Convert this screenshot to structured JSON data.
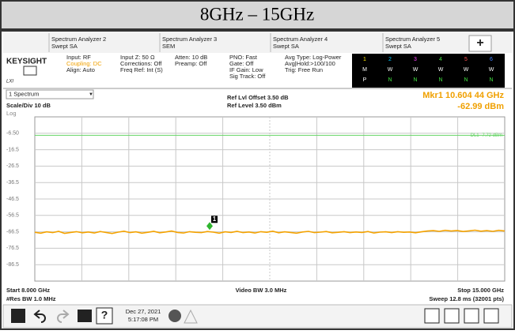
{
  "title": "8GHz – 15GHz",
  "tabs": [
    {
      "name": "Spectrum Analyzer 2",
      "mode": "Swept SA"
    },
    {
      "name": "Spectrum Analyzer 3",
      "mode": "SEM"
    },
    {
      "name": "Spectrum Analyzer 4",
      "mode": "Swept SA"
    },
    {
      "name": "Spectrum Analyzer 5",
      "mode": "Swept SA"
    }
  ],
  "add_tab": "+",
  "brand": "KEYSIGHT",
  "brand_sub": "LXI",
  "settings": [
    [
      "Input: RF",
      "Coupling: DC",
      "Align: Auto"
    ],
    [
      "Input Z: 50 Ω",
      "Corrections: Off",
      "Freq Ref: Int (S)"
    ],
    [
      "Atten: 10 dB",
      "Preamp: Off"
    ],
    [
      "PNO: Fast",
      "Gate: Off",
      "IF Gain: Low",
      "Sig Track: Off"
    ],
    [
      "Avg Type: Log-Power",
      "Avg|Hold:>100/100",
      "Trig: Free Run"
    ]
  ],
  "trace_table": [
    [
      "1",
      "2",
      "3",
      "4",
      "5",
      "6"
    ],
    [
      "M",
      "W",
      "W",
      "W",
      "W",
      "W"
    ],
    [
      "P",
      "N",
      "N",
      "N",
      "N",
      "N"
    ]
  ],
  "window": "1 Spectrum",
  "scale": "Scale/Div 10 dB",
  "log": "Log",
  "ref_offset": "Ref Lvl Offset 3.50 dB",
  "ref_level": "Ref Level 3.50 dBm",
  "marker_readout": [
    "Mkr1  10.604 44 GHz",
    "-62.99 dBm"
  ],
  "chart_data": {
    "type": "line",
    "xlim": [
      8,
      15
    ],
    "ylim": [
      -96.5,
      3.5
    ],
    "yticks": [
      {
        "value": -6.5,
        "label": "-6.50"
      },
      -16.5,
      -26.5,
      -36.5,
      -46.5,
      -56.5,
      -66.5,
      -76.5,
      -86.5
    ],
    "grid": true,
    "color": "#f5a300",
    "values": [
      -66.8,
      -67.3,
      -66.5,
      -67.0,
      -66.2,
      -67.4,
      -66.9,
      -66.4,
      -67.1,
      -66.6,
      -67.2,
      -66.3,
      -66.9,
      -67.5,
      -66.7,
      -66.1,
      -67.0,
      -66.5,
      -67.3,
      -66.8,
      -66.2,
      -67.1,
      -66.6,
      -66.0,
      -66.9,
      -67.2,
      -66.4,
      -66.8,
      -67.0,
      -66.3,
      -66.7,
      -67.3,
      -66.5,
      -66.9,
      -66.2,
      -67.0,
      -66.6,
      -67.2,
      -66.4,
      -66.8,
      -66.1,
      -67.1,
      -66.5,
      -66.9,
      -67.3,
      -66.6,
      -66.2,
      -67.0,
      -66.7,
      -66.3,
      -67.1,
      -66.8,
      -66.4,
      -67.0,
      -66.6,
      -66.9,
      -66.3,
      -67.2,
      -66.7,
      -66.5,
      -67.0,
      -66.4,
      -66.8,
      -66.6,
      -67.1,
      -66.5,
      -66.0,
      -65.8,
      -66.2,
      -65.6,
      -66.0,
      -65.7,
      -66.3,
      -65.9,
      -65.5,
      -66.1,
      -65.8,
      -66.2,
      -65.6,
      -66.0
    ],
    "marker": {
      "label": "1",
      "x": 10.60444,
      "y": -62.99,
      "color": "#2fb52f"
    },
    "display_line": {
      "label": "DL1 -7.72 dBm",
      "value": -7.72,
      "color": "#66d466"
    }
  },
  "footer": {
    "start": "Start 8.000 GHz",
    "rbw": "#Res BW 1.0 MHz",
    "vbw": "Video BW 3.0 MHz",
    "stop": "Stop 15.000 GHz",
    "sweep": "Sweep 12.8 ms (32001 pts)"
  },
  "taskbar": {
    "date": "Dec 27, 2021",
    "time": "5:17:08 PM"
  }
}
